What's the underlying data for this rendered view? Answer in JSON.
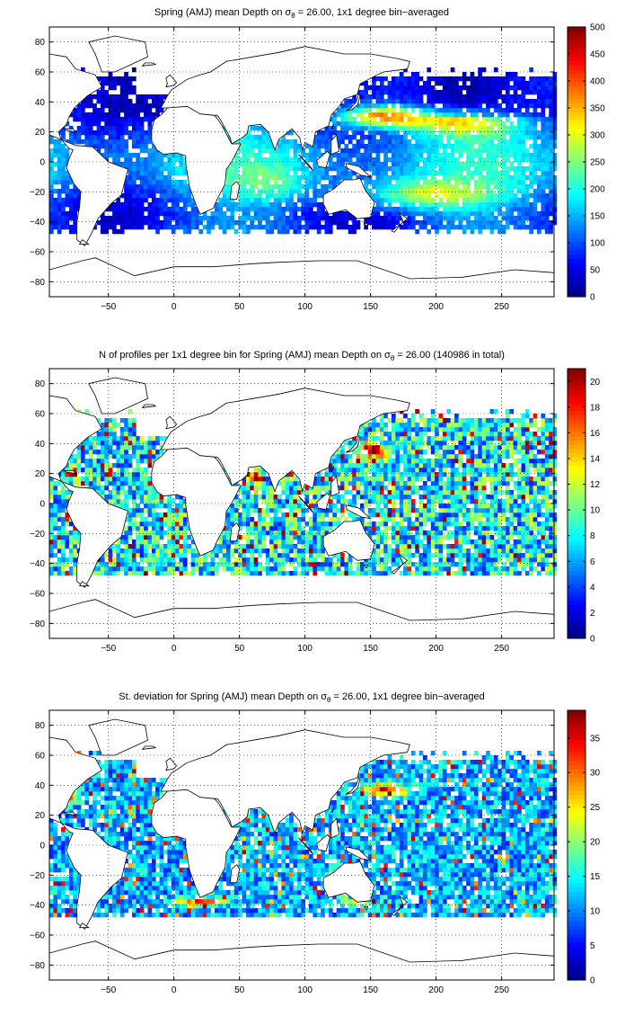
{
  "panels": [
    {
      "title_pre": "Spring (AMJ) mean Depth on σ",
      "title_sub": "θ",
      "title_post": " = 26.00, 1x1 degree bin−averaged",
      "chart_data": {
        "type": "heatmap",
        "x_ticks": [
          -50,
          0,
          50,
          100,
          150,
          200,
          250
        ],
        "y_ticks": [
          -80,
          -60,
          -40,
          -20,
          0,
          20,
          40,
          60,
          80
        ],
        "xlim": [
          -95,
          290
        ],
        "ylim": [
          -90,
          90
        ],
        "grid": true,
        "colorbar": {
          "min": 0,
          "max": 500,
          "ticks": [
            0,
            50,
            100,
            150,
            200,
            250,
            300,
            350,
            400,
            450,
            500
          ],
          "colormap": "jet",
          "position": "right"
        }
      }
    },
    {
      "title_pre": "N of profiles per 1x1 degree bin for Spring (AMJ) mean Depth on σ",
      "title_sub": "θ",
      "title_post": " = 26.00 (140986 in total)",
      "chart_data": {
        "type": "heatmap",
        "x_ticks": [
          -50,
          0,
          50,
          100,
          150,
          200,
          250
        ],
        "y_ticks": [
          -80,
          -60,
          -40,
          -20,
          0,
          20,
          40,
          60,
          80
        ],
        "xlim": [
          -95,
          290
        ],
        "ylim": [
          -90,
          90
        ],
        "grid": true,
        "colorbar": {
          "min": 0,
          "max": 21,
          "ticks": [
            0,
            2,
            4,
            6,
            8,
            10,
            12,
            14,
            16,
            18,
            20
          ],
          "colormap": "jet",
          "position": "right"
        }
      }
    },
    {
      "title_pre": "St. deviation for Spring (AMJ) mean Depth on σ",
      "title_sub": "θ",
      "title_post": " = 26.00, 1x1 degree bin−averaged",
      "chart_data": {
        "type": "heatmap",
        "x_ticks": [
          -50,
          0,
          50,
          100,
          150,
          200,
          250
        ],
        "y_ticks": [
          -80,
          -60,
          -40,
          -20,
          0,
          20,
          40,
          60,
          80
        ],
        "xlim": [
          -95,
          290
        ],
        "ylim": [
          -90,
          90
        ],
        "grid": true,
        "colorbar": {
          "min": 0,
          "max": 39,
          "ticks": [
            0,
            5,
            10,
            15,
            20,
            25,
            30,
            35
          ],
          "colormap": "jet",
          "position": "right"
        }
      }
    }
  ]
}
